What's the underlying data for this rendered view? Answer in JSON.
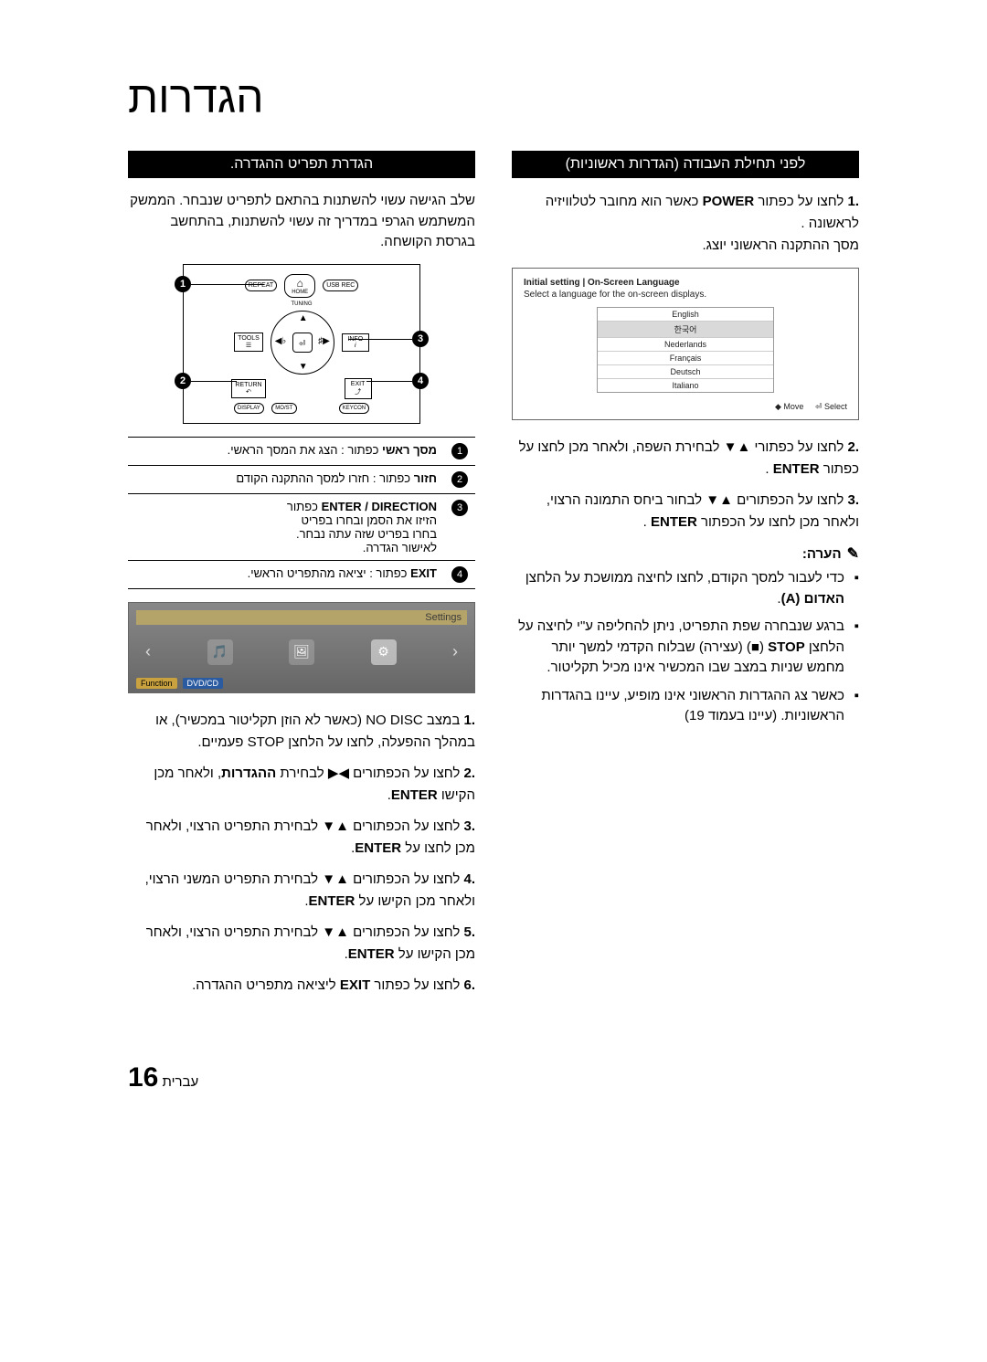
{
  "page_title": "הגדרות",
  "right_col": {
    "header": "לפני תחילת העבודה (הגדרות ראשוניות)",
    "steps_a": [
      {
        "num": ".1",
        "html": "לחצו על כפתור <b>POWER</b> כאשר הוא מחובר לטלוויזיה לראשונה .<br>מסך ההתקנה הראשוני יוצג."
      },
      {
        "num": ".2",
        "html": "לחצו על כפתורי ▲▼ לבחירת השפה, ולאחר  מכן לחצו על כפתור <b>ENTER</b> ."
      },
      {
        "num": ".3",
        "html": "לחצו על הכפתורים ▲▼ לבחור ביחס התמונה הרצוי, ולאחר מכן לחצו על הכפתור <b>ENTER</b> ."
      }
    ],
    "note_label": "הערה:",
    "bullets": [
      "כדי לעבור למסך הקודם, לחצו לחיצה ממושכת על הלחצן <b>האדום (A)</b>.",
      "ברגע שנבחרה שפת התפריט, ניתן להחליפה ע\"י לחיצה על הלחצן <b>STOP</b> (■) (עצירה) שבלוח הקדמי למשך יותר מחמש שניות במצב שבו המכשיר אינו מכיל תקליטור.",
      "כאשר צג ההגדרות הראשוני אינו מופיע, עיינו בהגדרות הראשוניות.  (עיינו בעמוד 19)"
    ],
    "osd": {
      "title": "Initial setting | On-Screen Language",
      "subtitle": "Select a language for the on-screen displays.",
      "items": [
        "English",
        "한국어",
        "Nederlands",
        "Français",
        "Deutsch",
        "Italiano"
      ],
      "selected_index": 1,
      "footer_move": "◆ Move",
      "footer_select": "⏎ Select"
    }
  },
  "left_col": {
    "header": "הגדרת תפריט ההגדרה.",
    "intro": "שלב הגישה עשוי להשתנות בהתאם לתפריט שנבחר. הממשק המשתמש הגרפי במדריך זה עשוי להשתנות, בהתחשב בגרסת הקושחה.",
    "remote_labels": {
      "repeat": "REPEAT",
      "home": "HOME",
      "usbrec": "USB REC",
      "tuning": "TUNING",
      "tools": "TOOLS",
      "info": "INFO",
      "return": "RETURN",
      "exit": "EXIT",
      "display": "DISPLAY",
      "most": "MO/ST",
      "keycon": "KEYCON",
      "enter": "⏎"
    },
    "callouts": {
      "c1": "1",
      "c2": "2",
      "c3": "3",
      "c4": "4"
    },
    "legend": [
      {
        "n": "1",
        "html": "<b>מסך ראשי</b> כפתור : הצג את המסך הראשי."
      },
      {
        "n": "2",
        "html": "<b>חזור</b> כפתור : חזרו למסך ההתקנה הקודם"
      },
      {
        "n": "3",
        "html": "<b>ENTER / DIRECTION</b> כפתור<br>הזיזו את הסמן ובחרו בפריט<br>בחרו בפריט שזה עתה נבחר.<br>לאישור הגדרה."
      },
      {
        "n": "4",
        "html": "<b>EXIT</b> כפתור : יציאה מהתפריט הראשי."
      }
    ],
    "settings": {
      "header": "Settings",
      "footer_fn": "Function",
      "footer_mode": "DVD/CD"
    },
    "steps_b": [
      {
        "num": ".1",
        "html": "במצב NO DISC (כאשר  לא הוזן תקליטור במכשיר), או במהלך ההפעלה, לחצו על הלחצן STOP פעמיים."
      },
      {
        "num": ".2",
        "html": "לחצו על הכפתורים ◀▶ לבחירת <b>ההגדרות</b>, ולאחר מכן הקישו <b>ENTER</b>."
      },
      {
        "num": ".3",
        "html": "לחצו על הכפתורים ▲▼ לבחירת התפריט הרצוי, ולאחר מכן לחצו על <b>ENTER</b>."
      },
      {
        "num": ".4",
        "html": "לחצו על הכפתורים ▲▼ לבחירת התפריט המשני הרצוי, ולאחר מכן הקישו על <b>ENTER</b>."
      },
      {
        "num": ".5",
        "html": "לחצו על הכפתורים ▲▼ לבחירת התפריט הרצוי, ולאחר מכן הקישו על <b>ENTER</b>."
      },
      {
        "num": ".6",
        "html": "לחצו על כפתור <b>EXIT</b> ליציאה מתפריט ההגדרה."
      }
    ]
  },
  "page_number": {
    "big": "16",
    "label": "עברית"
  },
  "colors": {
    "header_bg": "#000000",
    "header_fg": "#ffffff",
    "border": "#000000",
    "osd_sel": "#d9d9d9",
    "settings_grad_top": "#888888",
    "settings_grad_bot": "#666666",
    "settings_header_bg": "#b5a46a",
    "fn_bg": "#c9a23f",
    "mode_bg": "#2a5aa0"
  }
}
